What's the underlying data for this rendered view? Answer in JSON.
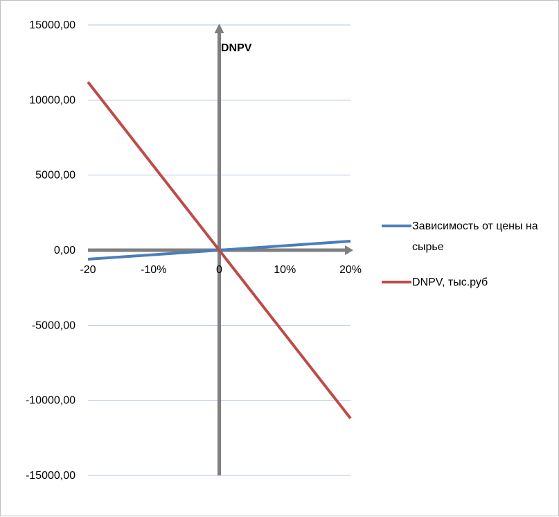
{
  "chart_data": {
    "type": "line",
    "title": "",
    "ylabel": "DNPV",
    "xlabel": "",
    "x": [
      -20,
      0,
      20
    ],
    "x_tick_labels": [
      {
        "x": -20,
        "label": "-20"
      },
      {
        "x": -10,
        "label": "-10%"
      },
      {
        "x": 0,
        "label": "0"
      },
      {
        "x": 10,
        "label": "10%"
      },
      {
        "x": 20,
        "label": "20%"
      }
    ],
    "y_ticks": [
      15000,
      10000,
      5000,
      0,
      -5000,
      -10000,
      -15000
    ],
    "y_tick_labels": [
      "15000,00",
      "10000,00",
      "5000,00",
      "0,00",
      "-5000,00",
      "-10000,00",
      "-15000,00"
    ],
    "xlim": [
      -20,
      20
    ],
    "ylim": [
      -15000,
      15000
    ],
    "grid": true,
    "legend_position": "right",
    "series": [
      {
        "name": "Зависимость от цены на сырье",
        "legend_lines": [
          "Зависимость от цены на",
          "сырье"
        ],
        "values": [
          -600,
          0,
          600
        ],
        "color": "#4a7ebb"
      },
      {
        "name": "DNPV, тыс.руб",
        "legend_lines": [
          "DNPV, тыс.руб"
        ],
        "values": [
          11200,
          0,
          -11200
        ],
        "color": "#be4b48"
      }
    ],
    "colors": {
      "gridline": "#b4c6e7",
      "axis": "#7f7f7f"
    }
  }
}
